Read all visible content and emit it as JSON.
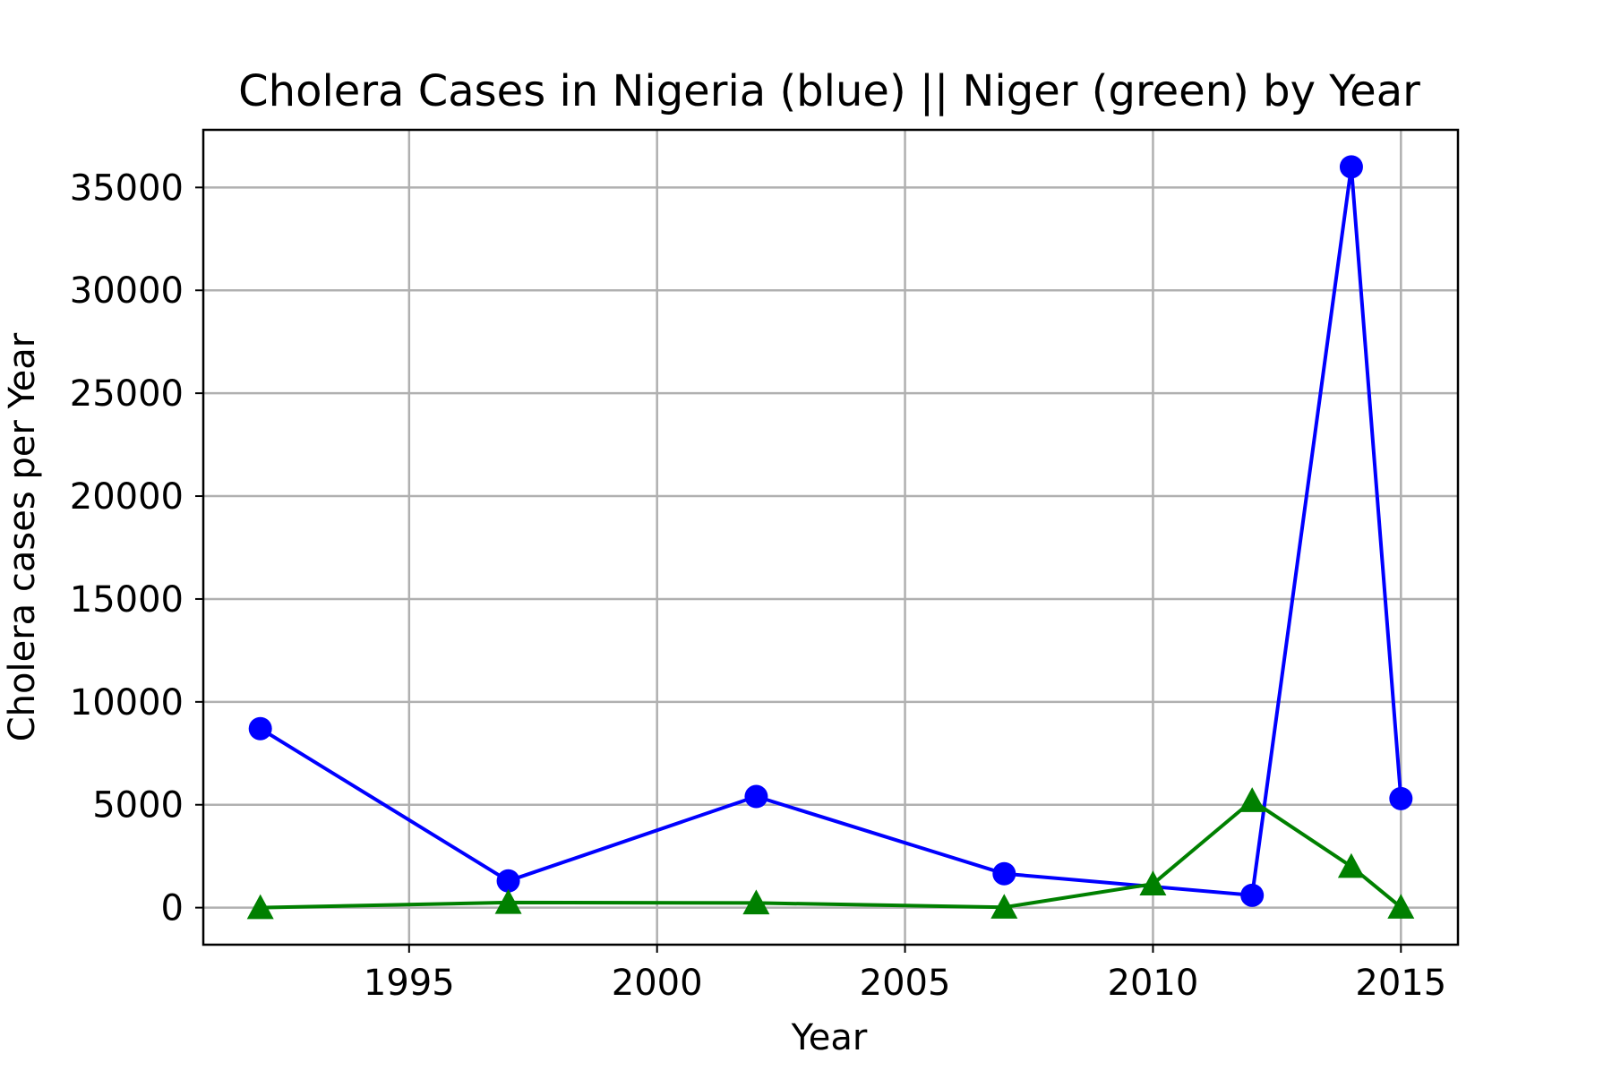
{
  "chart_data": {
    "type": "line",
    "title": "Cholera Cases in Nigeria (blue) || Niger (green) by Year",
    "xlabel": "Year",
    "ylabel": "Cholera cases per Year",
    "xlim": [
      1990.85,
      2016.15
    ],
    "ylim": [
      -1800,
      37800
    ],
    "xticks": [
      1995,
      2000,
      2005,
      2010,
      2015
    ],
    "xtick_labels": [
      "1995",
      "2000",
      "2005",
      "2010",
      "2015"
    ],
    "yticks": [
      0,
      5000,
      10000,
      15000,
      20000,
      25000,
      30000,
      35000
    ],
    "ytick_labels": [
      "0",
      "5000",
      "10000",
      "15000",
      "20000",
      "25000",
      "30000",
      "35000"
    ],
    "grid": true,
    "legend": "none",
    "series": [
      {
        "color": "#0000ff",
        "marker": "circle",
        "x": [
          1992,
          1997,
          2002,
          2007,
          2012,
          2014,
          2015
        ],
        "y": [
          8700,
          1300,
          5400,
          1650,
          600,
          36000,
          5300
        ]
      },
      {
        "color": "#008000",
        "marker": "triangle",
        "x": [
          1992,
          1997,
          2002,
          2007,
          2010,
          2012,
          2014,
          2015
        ],
        "y": [
          0,
          250,
          230,
          20,
          1150,
          5200,
          2000,
          20
        ]
      }
    ]
  }
}
